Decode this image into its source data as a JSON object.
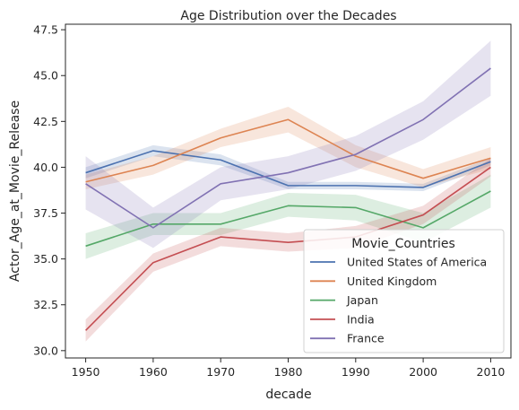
{
  "chart_data": {
    "type": "line",
    "title": "Age Distribution over the Decades",
    "xlabel": "decade",
    "ylabel": "Actor_Age_at_Movie_Release",
    "x": [
      1950,
      1960,
      1970,
      1980,
      1990,
      2000,
      2010
    ],
    "xticks": [
      "1950",
      "1960",
      "1970",
      "1980",
      "1990",
      "2000",
      "2010"
    ],
    "yticks": [
      "30.0",
      "32.5",
      "35.0",
      "37.5",
      "40.0",
      "42.5",
      "45.0",
      "47.5"
    ],
    "xlim": [
      1947,
      2013
    ],
    "ylim": [
      29.6,
      47.8
    ],
    "grid": false,
    "legend": {
      "title": "Movie_Countries",
      "position": "lower-right"
    },
    "series": [
      {
        "name": "United States of America",
        "color": "#4c72b0",
        "values": [
          39.7,
          40.9,
          40.4,
          39.0,
          39.0,
          38.9,
          40.3
        ],
        "lower": [
          39.4,
          40.6,
          40.1,
          38.8,
          38.8,
          38.7,
          40.1
        ],
        "upper": [
          40.0,
          41.2,
          40.7,
          39.2,
          39.2,
          39.1,
          40.5
        ]
      },
      {
        "name": "United Kingdom",
        "color": "#dd8452",
        "values": [
          39.2,
          40.1,
          41.6,
          42.6,
          40.6,
          39.4,
          40.5
        ],
        "lower": [
          38.8,
          39.6,
          41.1,
          41.9,
          40.0,
          38.9,
          39.9
        ],
        "upper": [
          39.6,
          40.6,
          42.1,
          43.3,
          41.2,
          39.9,
          41.1
        ]
      },
      {
        "name": "Japan",
        "color": "#55a868",
        "values": [
          35.7,
          36.9,
          36.9,
          37.9,
          37.8,
          36.7,
          38.7
        ],
        "lower": [
          35.0,
          36.3,
          36.3,
          37.3,
          37.1,
          35.9,
          37.8
        ],
        "upper": [
          36.4,
          37.5,
          37.5,
          38.6,
          38.5,
          37.5,
          39.6
        ]
      },
      {
        "name": "India",
        "color": "#c44e52",
        "values": [
          31.1,
          34.8,
          36.2,
          35.9,
          36.2,
          37.4,
          40.0
        ],
        "lower": [
          30.5,
          34.3,
          35.7,
          35.4,
          35.6,
          36.9,
          39.5
        ],
        "upper": [
          31.7,
          35.3,
          36.7,
          36.4,
          36.8,
          37.9,
          40.5
        ]
      },
      {
        "name": "France",
        "color": "#8172b3",
        "values": [
          39.1,
          36.7,
          39.1,
          39.7,
          40.7,
          42.6,
          45.4
        ],
        "lower": [
          37.7,
          35.6,
          38.2,
          38.8,
          39.8,
          41.5,
          43.9
        ],
        "upper": [
          40.6,
          37.8,
          40.0,
          40.6,
          41.7,
          43.6,
          46.9
        ]
      }
    ]
  }
}
